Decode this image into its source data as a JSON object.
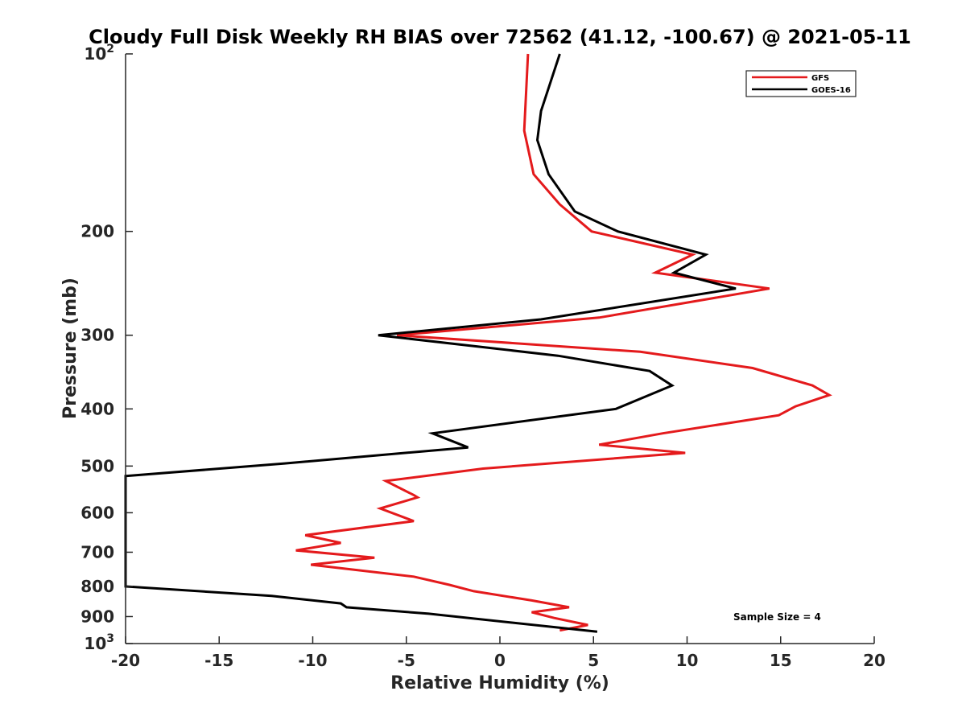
{
  "chart_data": {
    "type": "line",
    "title": "Cloudy Full Disk Weekly RH BIAS over 72562 (41.12, -100.67) @ 2021-05-11",
    "xlabel": "Relative Humidity (%)",
    "ylabel": "Pressure (mb)",
    "xlim": [
      -20,
      20
    ],
    "ylim": [
      100,
      1000
    ],
    "y_scale": "log",
    "y_reversed": true,
    "xticks": [
      -20,
      -15,
      -10,
      -5,
      0,
      5,
      10,
      15,
      20
    ],
    "xtick_labels": [
      "-20",
      "-15",
      "-10",
      "-5",
      "0",
      "5",
      "10",
      "15",
      "20"
    ],
    "yticks": [
      {
        "value": 100,
        "base": "10",
        "exp": "2"
      },
      {
        "value": 200,
        "base": "200",
        "exp": ""
      },
      {
        "value": 300,
        "base": "300",
        "exp": ""
      },
      {
        "value": 400,
        "base": "400",
        "exp": ""
      },
      {
        "value": 500,
        "base": "500",
        "exp": ""
      },
      {
        "value": 600,
        "base": "600",
        "exp": ""
      },
      {
        "value": 700,
        "base": "700",
        "exp": ""
      },
      {
        "value": 800,
        "base": "800",
        "exp": ""
      },
      {
        "value": 900,
        "base": "900",
        "exp": ""
      },
      {
        "value": 1000,
        "base": "10",
        "exp": "3"
      }
    ],
    "legend_position": "top-right",
    "annotation": "Sample Size = 4",
    "series": [
      {
        "name": "GFS",
        "color": "#e41a1c",
        "points": [
          [
            1.5,
            100
          ],
          [
            1.3,
            135
          ],
          [
            1.8,
            160
          ],
          [
            3.2,
            180
          ],
          [
            4.9,
            200
          ],
          [
            10.3,
            219
          ],
          [
            8.3,
            235
          ],
          [
            14.4,
            250
          ],
          [
            5.3,
            280
          ],
          [
            -5.5,
            300
          ],
          [
            7.5,
            320
          ],
          [
            13.5,
            341
          ],
          [
            16.7,
            365
          ],
          [
            17.6,
            379
          ],
          [
            15.8,
            396
          ],
          [
            14.9,
            410
          ],
          [
            8.7,
            440
          ],
          [
            5.3,
            460
          ],
          [
            9.9,
            475
          ],
          [
            -0.9,
            505
          ],
          [
            -6.1,
            530
          ],
          [
            -4.6,
            560
          ],
          [
            -4.4,
            565
          ],
          [
            -6.4,
            590
          ],
          [
            -4.6,
            620
          ],
          [
            -10.4,
            655
          ],
          [
            -8.5,
            675
          ],
          [
            -10.9,
            695
          ],
          [
            -6.7,
            715
          ],
          [
            -10.1,
            735
          ],
          [
            -4.6,
            770
          ],
          [
            -2.7,
            795
          ],
          [
            -1.4,
            815
          ],
          [
            1.7,
            845
          ],
          [
            3.7,
            868
          ],
          [
            1.7,
            885
          ],
          [
            2.9,
            905
          ],
          [
            4.7,
            930
          ],
          [
            3.2,
            950
          ]
        ]
      },
      {
        "name": "GOES-16",
        "color": "#000000",
        "points": [
          [
            3.2,
            100
          ],
          [
            2.2,
            125
          ],
          [
            2.0,
            140
          ],
          [
            2.6,
            160
          ],
          [
            4.0,
            185
          ],
          [
            6.3,
            200
          ],
          [
            11.0,
            219
          ],
          [
            9.3,
            235
          ],
          [
            12.6,
            250
          ],
          [
            2.2,
            282
          ],
          [
            -6.5,
            300
          ],
          [
            3.1,
            325
          ],
          [
            8.0,
            345
          ],
          [
            9.2,
            365
          ],
          [
            6.2,
            400
          ],
          [
            -3.6,
            440
          ],
          [
            -1.7,
            465
          ],
          [
            -11.5,
            495
          ],
          [
            -20.0,
            520
          ],
          [
            -20.0,
            800
          ],
          [
            -12.2,
            830
          ],
          [
            -8.5,
            855
          ],
          [
            -8.2,
            868
          ],
          [
            -3.8,
            890
          ],
          [
            5.2,
            955
          ]
        ]
      }
    ]
  }
}
